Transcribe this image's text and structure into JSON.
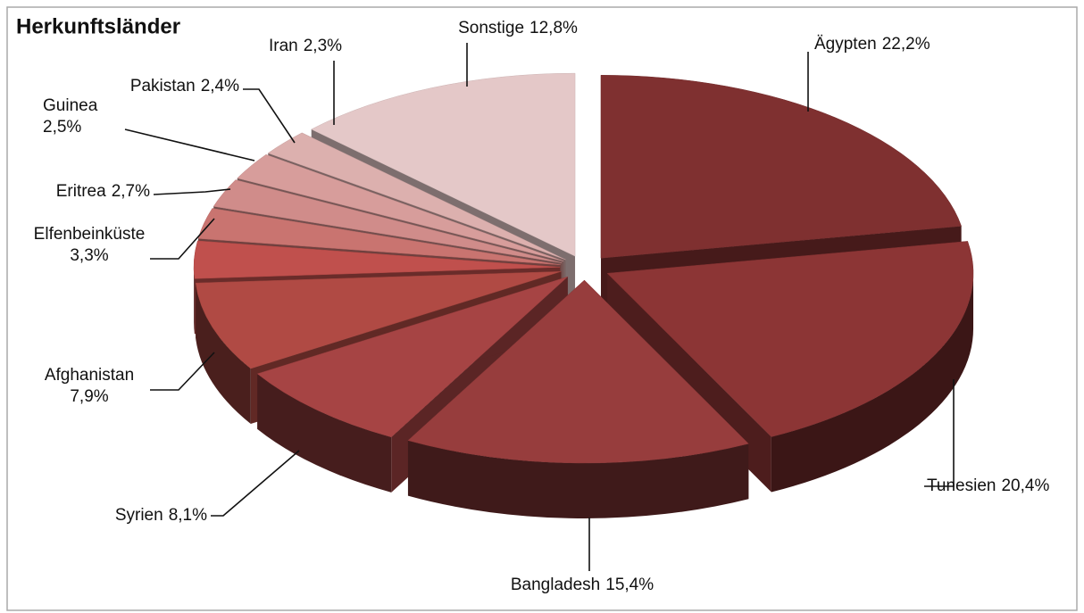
{
  "chart_data": {
    "type": "pie",
    "title": "Herkunftsländer",
    "categories": [
      "Ägypten",
      "Tunesien",
      "Bangladesh",
      "Syrien",
      "Afghanistan",
      "Elfenbeinküste",
      "Eritrea",
      "Guinea",
      "Pakistan",
      "Iran",
      "Sonstige"
    ],
    "values": [
      22.2,
      20.4,
      15.4,
      8.1,
      7.9,
      3.3,
      2.7,
      2.5,
      2.4,
      2.3,
      12.8
    ],
    "value_labels": [
      "22,2%",
      "20,4%",
      "15,4%",
      "8,1%",
      "7,9%",
      "3,3%",
      "2,7%",
      "2,5%",
      "2,4%",
      "2,3%",
      "12,8%"
    ],
    "colors": [
      "#7f3030",
      "#8c3535",
      "#973d3d",
      "#a64444",
      "#b04a44",
      "#c0504d",
      "#c97470",
      "#d08c8a",
      "#d79d9b",
      "#dcb0ae",
      "#e4c8c8"
    ]
  }
}
